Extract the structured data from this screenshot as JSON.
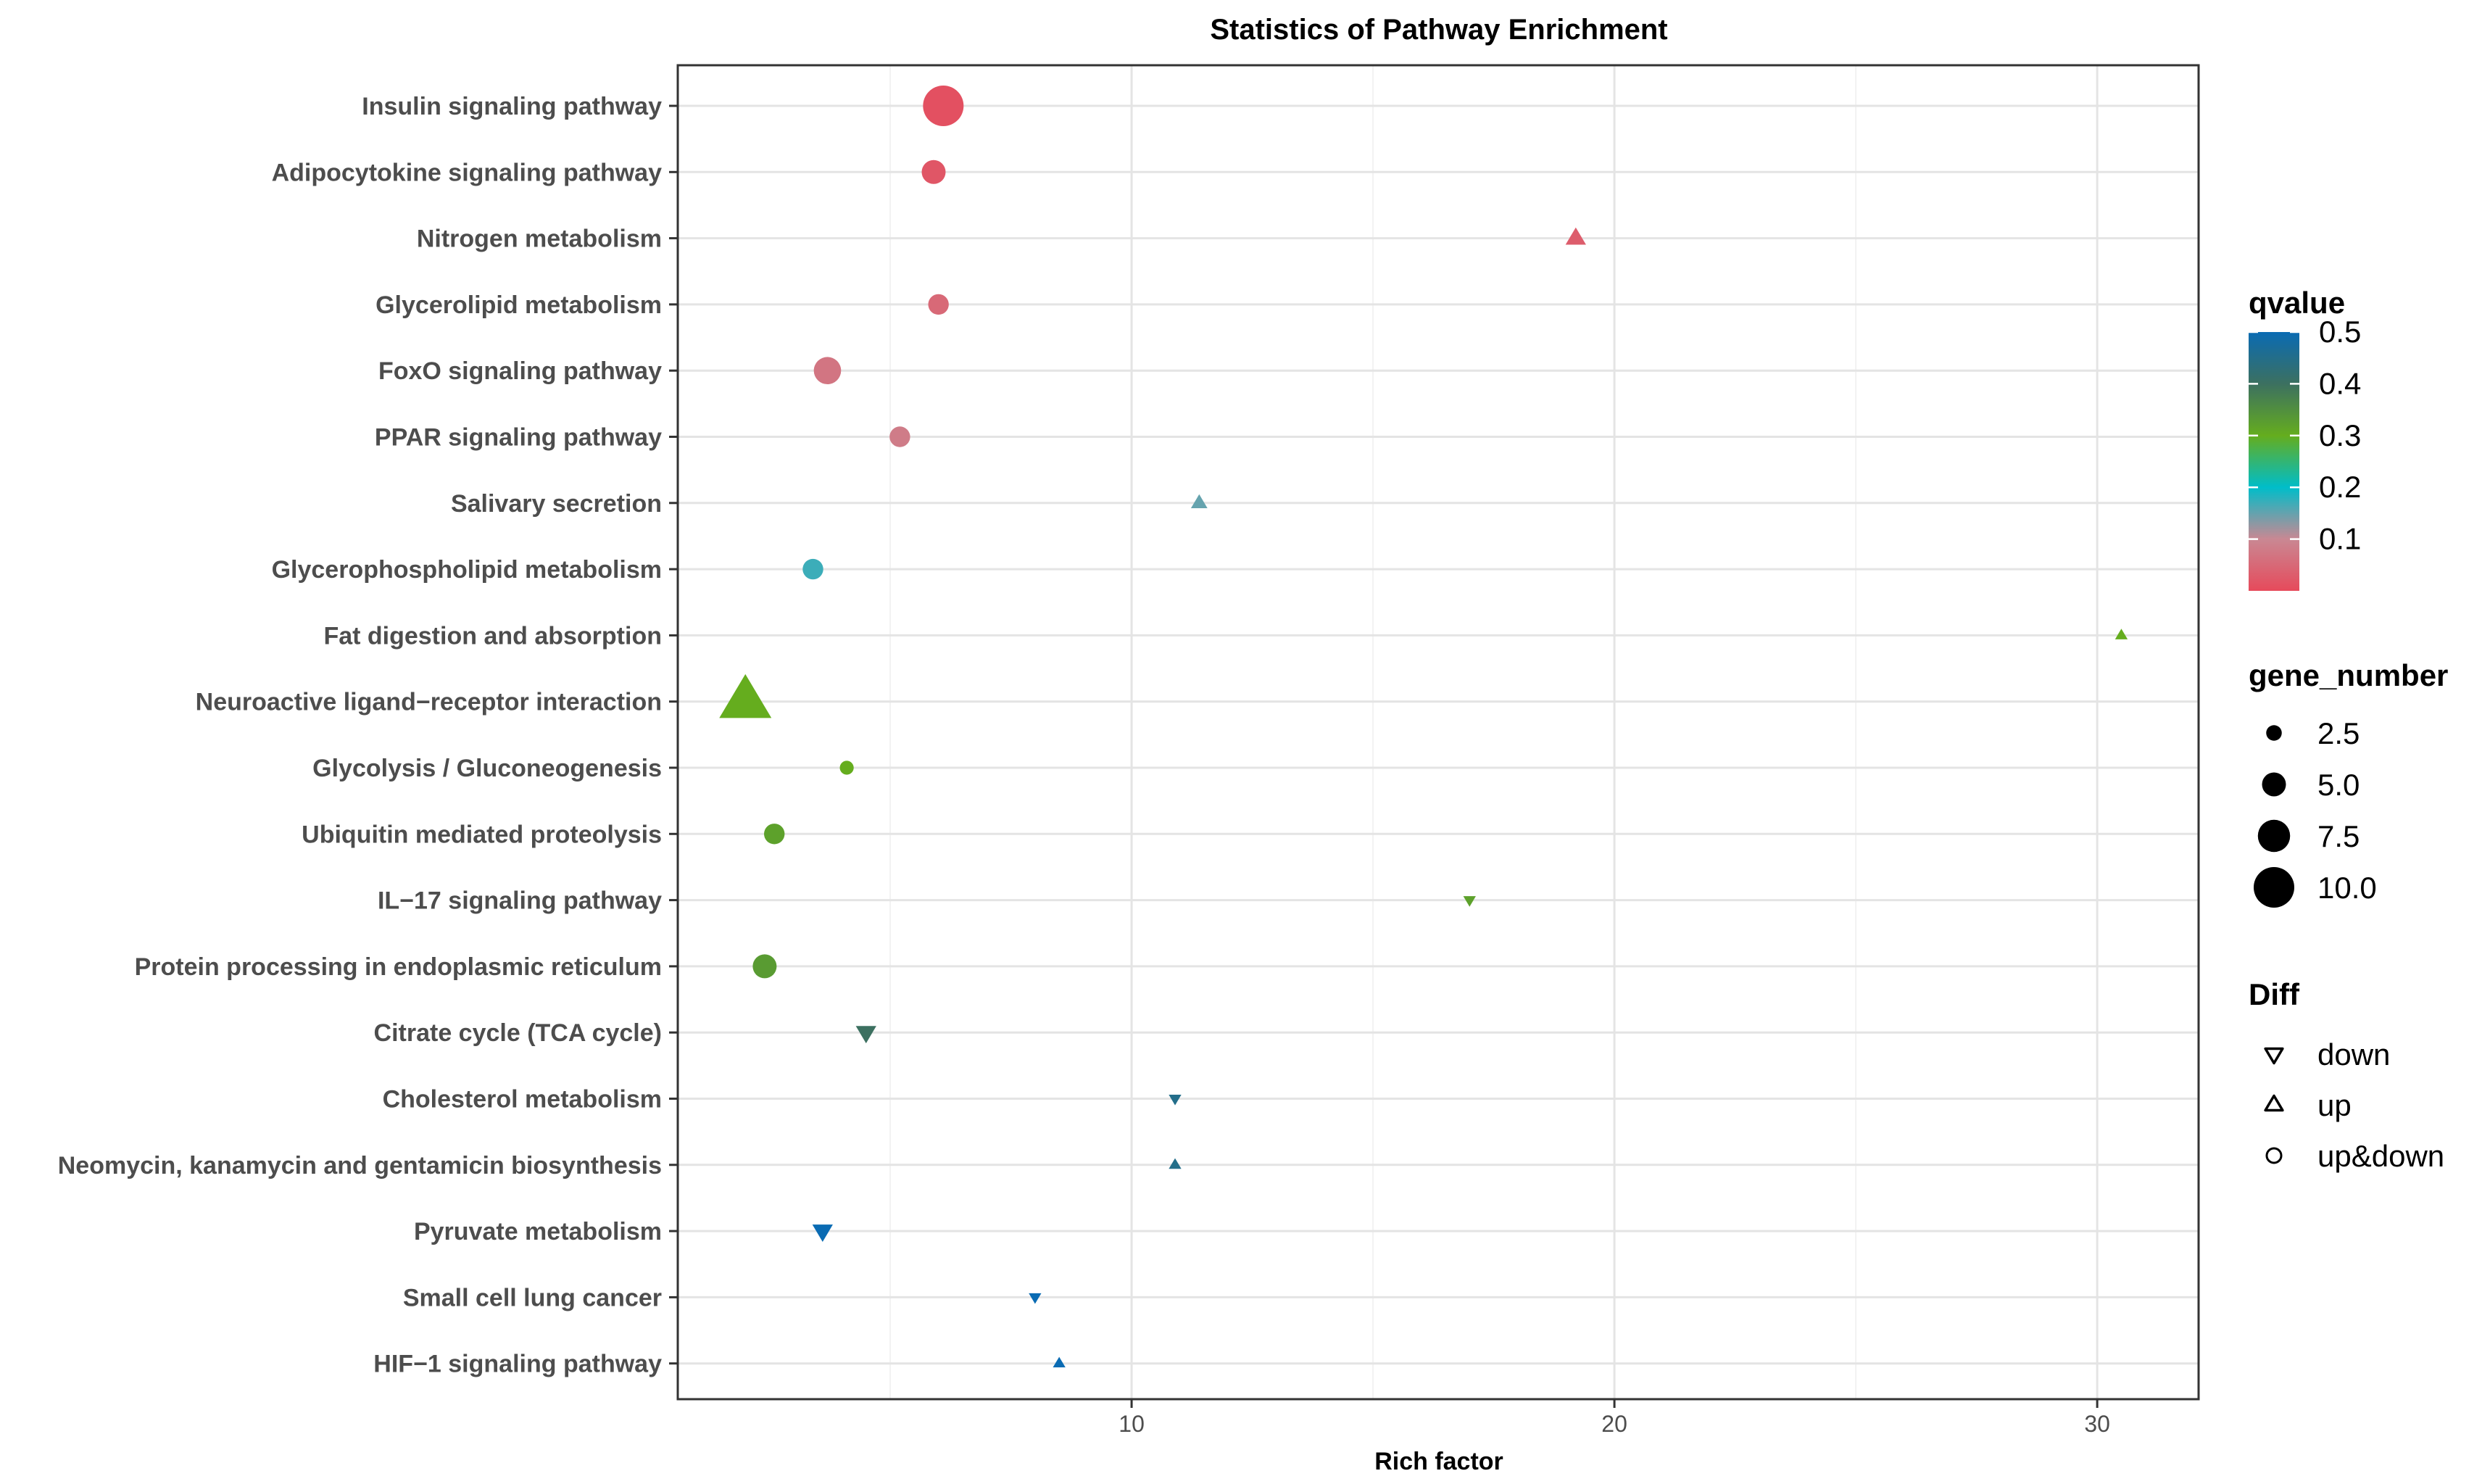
{
  "chart_data": {
    "type": "scatter",
    "title": "Statistics of Pathway Enrichment",
    "xlabel": "Rich factor",
    "ylabel": "",
    "xlim": [
      0.6,
      32.1
    ],
    "xticks": [
      10,
      20,
      30
    ],
    "grid": true,
    "categories": [
      "Insulin signaling pathway",
      "Adipocytokine signaling pathway",
      "Nitrogen metabolism",
      "Glycerolipid metabolism",
      "FoxO signaling pathway",
      "PPAR signaling pathway",
      "Salivary secretion",
      "Glycerophospholipid metabolism",
      "Fat digestion and absorption",
      "Neuroactive ligand−receptor interaction",
      "Glycolysis / Gluconeogenesis",
      "Ubiquitin mediated proteolysis",
      "IL−17 signaling pathway",
      "Protein processing in endoplasmic reticulum",
      "Citrate cycle (TCA cycle)",
      "Cholesterol metabolism",
      "Neomycin, kanamycin and gentamicin biosynthesis",
      "Pyruvate metabolism",
      "Small cell lung cancer",
      "HIF−1 signaling pathway"
    ],
    "points": [
      {
        "pathway": "Insulin signaling pathway",
        "rich_factor": 6.1,
        "qvalue": 0.01,
        "gene_number": 10,
        "diff": "up&down"
      },
      {
        "pathway": "Adipocytokine signaling pathway",
        "rich_factor": 5.9,
        "qvalue": 0.02,
        "gene_number": 5,
        "diff": "up&down"
      },
      {
        "pathway": "Nitrogen metabolism",
        "rich_factor": 19.2,
        "qvalue": 0.03,
        "gene_number": 3,
        "diff": "up"
      },
      {
        "pathway": "Glycerolipid metabolism",
        "rich_factor": 6.0,
        "qvalue": 0.05,
        "gene_number": 4,
        "diff": "up&down"
      },
      {
        "pathway": "FoxO signaling pathway",
        "rich_factor": 3.7,
        "qvalue": 0.07,
        "gene_number": 6,
        "diff": "up&down"
      },
      {
        "pathway": "PPAR signaling pathway",
        "rich_factor": 5.2,
        "qvalue": 0.08,
        "gene_number": 4,
        "diff": "up&down"
      },
      {
        "pathway": "Salivary secretion",
        "rich_factor": 11.4,
        "qvalue": 0.15,
        "gene_number": 2,
        "diff": "up"
      },
      {
        "pathway": "Glycerophospholipid metabolism",
        "rich_factor": 3.4,
        "qvalue": 0.17,
        "gene_number": 4,
        "diff": "up&down"
      },
      {
        "pathway": "Fat digestion and absorption",
        "rich_factor": 30.5,
        "qvalue": 0.3,
        "gene_number": 1,
        "diff": "up"
      },
      {
        "pathway": "Neuroactive ligand−receptor interaction",
        "rich_factor": 2.0,
        "qvalue": 0.3,
        "gene_number": 11,
        "diff": "up"
      },
      {
        "pathway": "Glycolysis / Gluconeogenesis",
        "rich_factor": 4.1,
        "qvalue": 0.3,
        "gene_number": 2,
        "diff": "up&down"
      },
      {
        "pathway": "Ubiquitin mediated proteolysis",
        "rich_factor": 2.6,
        "qvalue": 0.32,
        "gene_number": 4,
        "diff": "up&down"
      },
      {
        "pathway": "IL−17 signaling pathway",
        "rich_factor": 17.0,
        "qvalue": 0.32,
        "gene_number": 1,
        "diff": "down"
      },
      {
        "pathway": "Protein processing in endoplasmic reticulum",
        "rich_factor": 2.4,
        "qvalue": 0.33,
        "gene_number": 5,
        "diff": "up&down"
      },
      {
        "pathway": "Citrate cycle (TCA cycle)",
        "rich_factor": 4.5,
        "qvalue": 0.4,
        "gene_number": 3,
        "diff": "down"
      },
      {
        "pathway": "Cholesterol metabolism",
        "rich_factor": 10.9,
        "qvalue": 0.45,
        "gene_number": 1,
        "diff": "down"
      },
      {
        "pathway": "Neomycin, kanamycin and gentamicin biosynthesis",
        "rich_factor": 10.9,
        "qvalue": 0.45,
        "gene_number": 1,
        "diff": "up"
      },
      {
        "pathway": "Pyruvate metabolism",
        "rich_factor": 3.6,
        "qvalue": 0.5,
        "gene_number": 3,
        "diff": "down"
      },
      {
        "pathway": "Small cell lung cancer",
        "rich_factor": 8.0,
        "qvalue": 0.5,
        "gene_number": 1,
        "diff": "down"
      },
      {
        "pathway": "HIF−1 signaling pathway",
        "rich_factor": 8.5,
        "qvalue": 0.5,
        "gene_number": 1,
        "diff": "up"
      }
    ],
    "legend": {
      "placement": "right",
      "qvalue": {
        "title": "qvalue",
        "ticks": [
          "0.5",
          "0.4",
          "0.3",
          "0.2",
          "0.1"
        ],
        "tick_values": [
          0.5,
          0.4,
          0.3,
          0.2,
          0.1
        ],
        "range": [
          0.0,
          0.5
        ],
        "colors": [
          "#E64A5B",
          "#C98893",
          "#00BDC9",
          "#65AD1E",
          "#3C7060",
          "#0A6BB3"
        ]
      },
      "gene_number": {
        "title": "gene_number",
        "labels": [
          "2.5",
          "5.0",
          "7.5",
          "10.0"
        ],
        "values": [
          2.5,
          5.0,
          7.5,
          10.0
        ]
      },
      "diff": {
        "title": "Diff",
        "labels": [
          "down",
          "up",
          "up&down"
        ],
        "shapes": [
          "triangle-down",
          "triangle-up",
          "circle"
        ]
      }
    }
  }
}
